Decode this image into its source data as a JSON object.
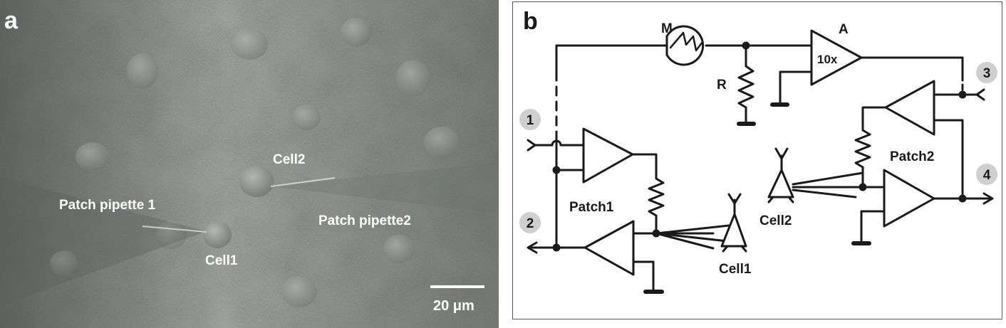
{
  "panel_a": {
    "panel_label": "a",
    "labels": {
      "cell2": "Cell2",
      "patch_pipette_1": "Patch pipette 1",
      "patch_pipette_2": "Patch pipette2",
      "cell1": "Cell1"
    },
    "scale_bar_label": "20 μm"
  },
  "panel_b": {
    "panel_label": "b",
    "meter_label": "M",
    "resistor_label": "R",
    "amplifier_label": "A",
    "amplifier_gain": "10x",
    "patch1_label": "Patch1",
    "patch2_label": "Patch2",
    "cell1_label": "Cell1",
    "cell2_label": "Cell2",
    "node_labels": [
      "1",
      "2",
      "3",
      "4"
    ]
  }
}
